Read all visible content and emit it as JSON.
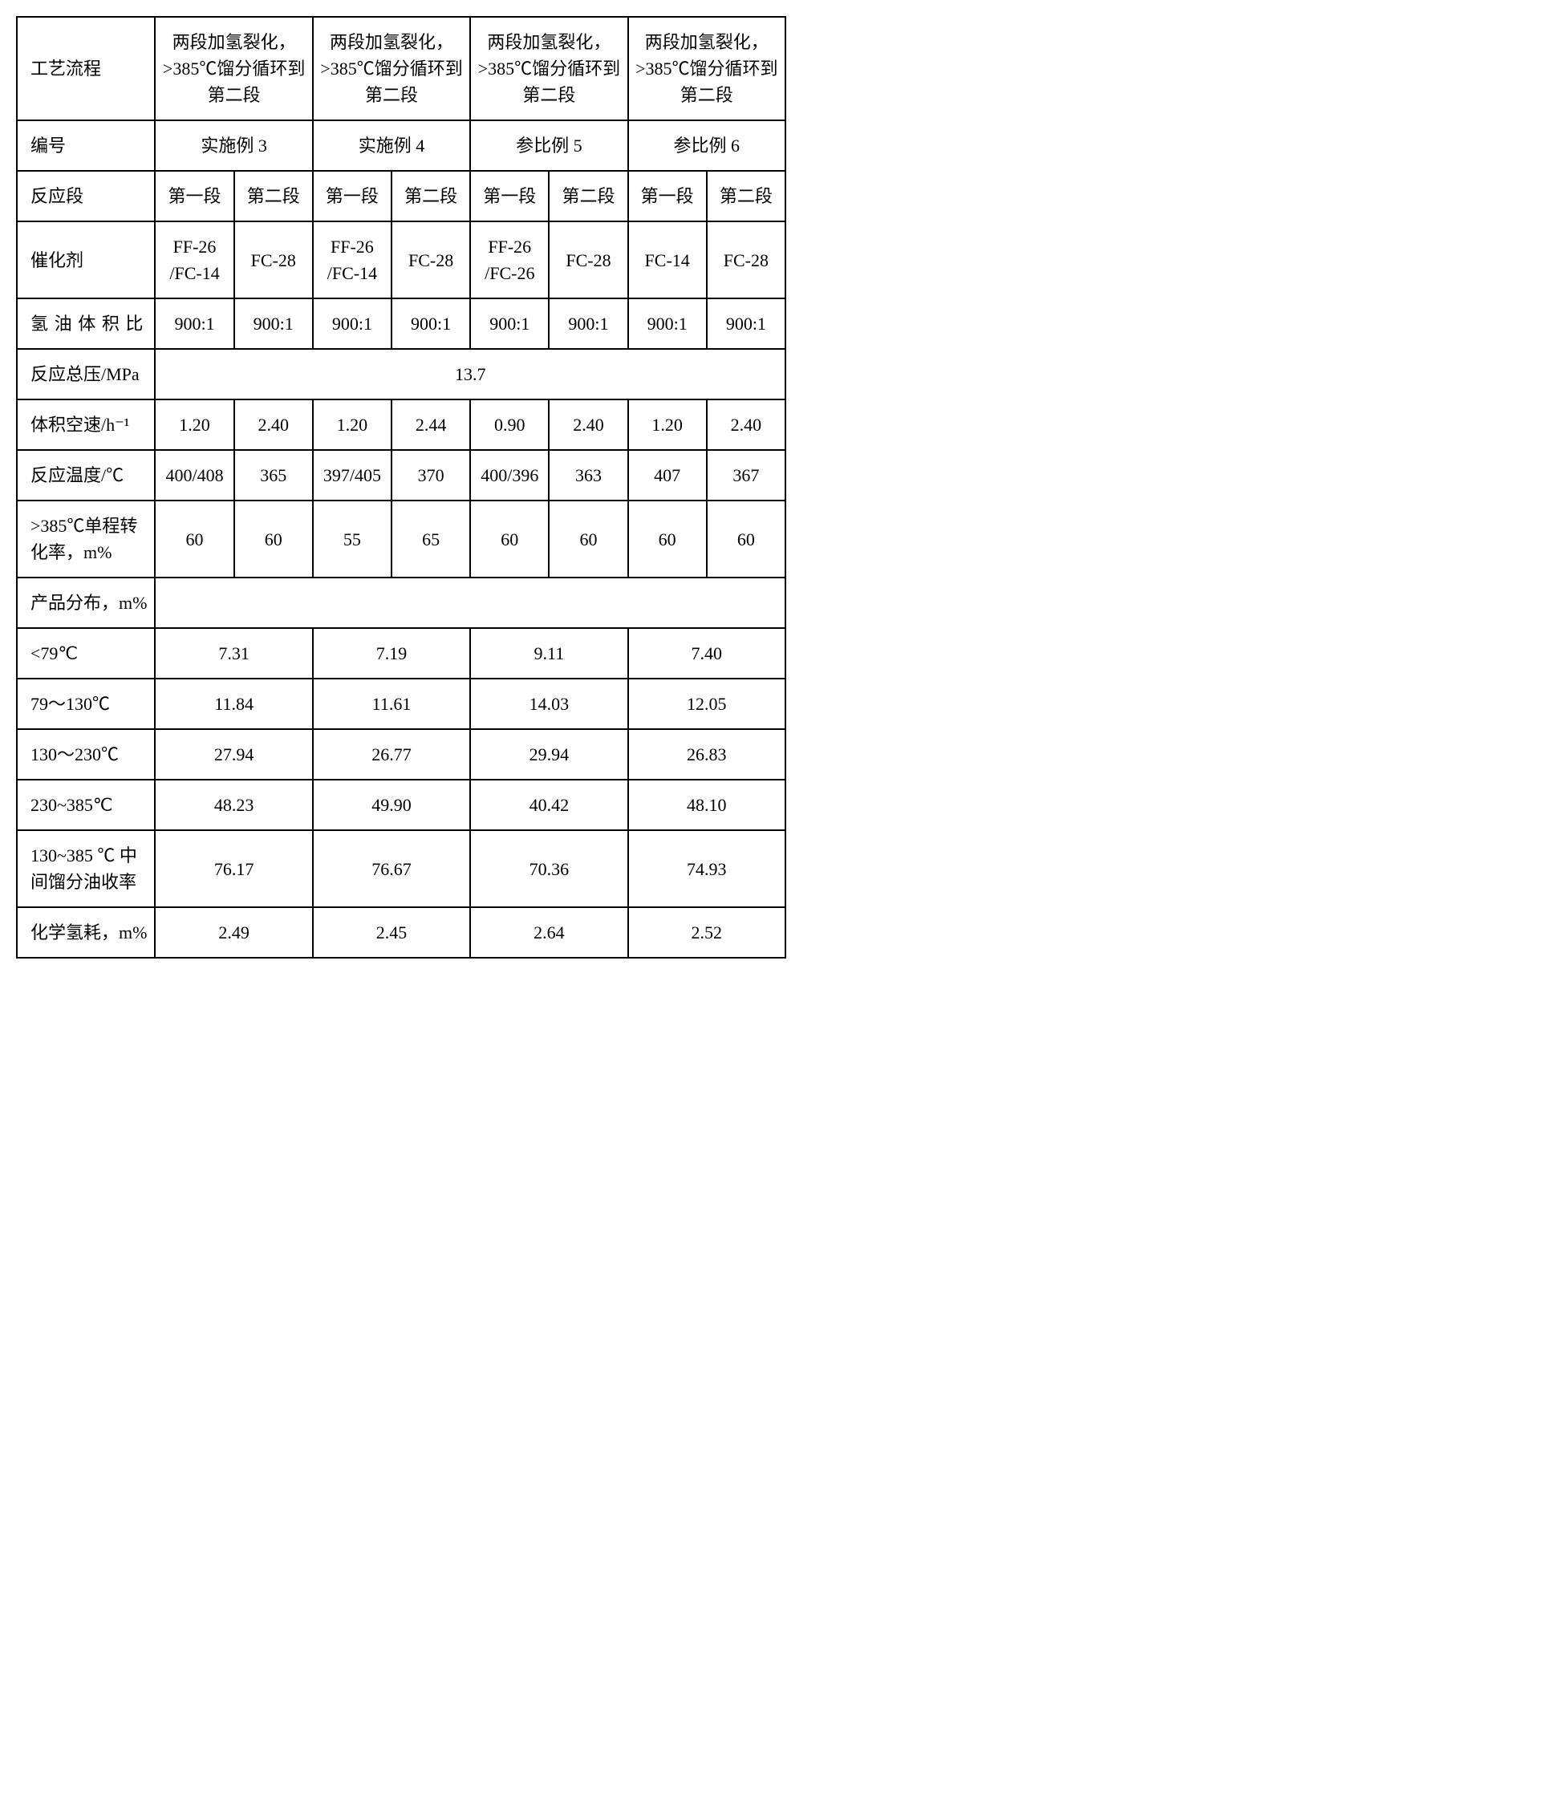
{
  "process_header": "工艺流程",
  "process_desc": "两段加氢裂化，>385℃馏分循环到第二段",
  "row_number_label": "编号",
  "examples": [
    "实施例 3",
    "实施例 4",
    "参比例 5",
    "参比例 6"
  ],
  "row_stage_label": "反应段",
  "stage_1": "第一段",
  "stage_2": "第二段",
  "row_catalyst_label": "催化剂",
  "catalyst": [
    [
      "FF-26 /FC-14",
      "FC-28"
    ],
    [
      "FF-26 /FC-14",
      "FC-28"
    ],
    [
      "FF-26 /FC-26",
      "FC-28"
    ],
    [
      "FC-14",
      "FC-28"
    ]
  ],
  "row_h2oil_label": "氢油体积比",
  "h2oil": [
    [
      "900:1",
      "900:1"
    ],
    [
      "900:1",
      "900:1"
    ],
    [
      "900:1",
      "900:1"
    ],
    [
      "900:1",
      "900:1"
    ]
  ],
  "row_total_pressure_label": "反应总压/MPa",
  "total_pressure": "13.7",
  "row_sv_label": "体积空速/h⁻¹",
  "sv": [
    [
      "1.20",
      "2.40"
    ],
    [
      "1.20",
      "2.44"
    ],
    [
      "0.90",
      "2.40"
    ],
    [
      "1.20",
      "2.40"
    ]
  ],
  "row_temp_label": "反应温度/℃",
  "temp": [
    [
      "400/408",
      "365"
    ],
    [
      "397/405",
      "370"
    ],
    [
      "400/396",
      "363"
    ],
    [
      "407",
      "367"
    ]
  ],
  "row_conv_label": ">385℃单程转化率，m%",
  "conv": [
    [
      "60",
      "60"
    ],
    [
      "55",
      "65"
    ],
    [
      "60",
      "60"
    ],
    [
      "60",
      "60"
    ]
  ],
  "row_prod_dist_label": "产品分布，m%",
  "dist_rows": [
    {
      "label": "<79℃",
      "vals": [
        "7.31",
        "7.19",
        "9.11",
        "7.40"
      ]
    },
    {
      "label": "79～130℃",
      "vals": [
        "11.84",
        "11.61",
        "14.03",
        "12.05"
      ]
    },
    {
      "label": "130～230℃",
      "vals": [
        "27.94",
        "26.77",
        "29.94",
        "26.83"
      ]
    },
    {
      "label": "230~385℃",
      "vals": [
        "48.23",
        "49.90",
        "40.42",
        "48.10"
      ]
    },
    {
      "label": "130~385 ℃ 中间馏分油收率",
      "vals": [
        "76.17",
        "76.67",
        "70.36",
        "74.93"
      ]
    }
  ],
  "row_h2cons_label": "化学氢耗，m%",
  "h2cons": [
    "2.49",
    "2.45",
    "2.64",
    "2.52"
  ]
}
